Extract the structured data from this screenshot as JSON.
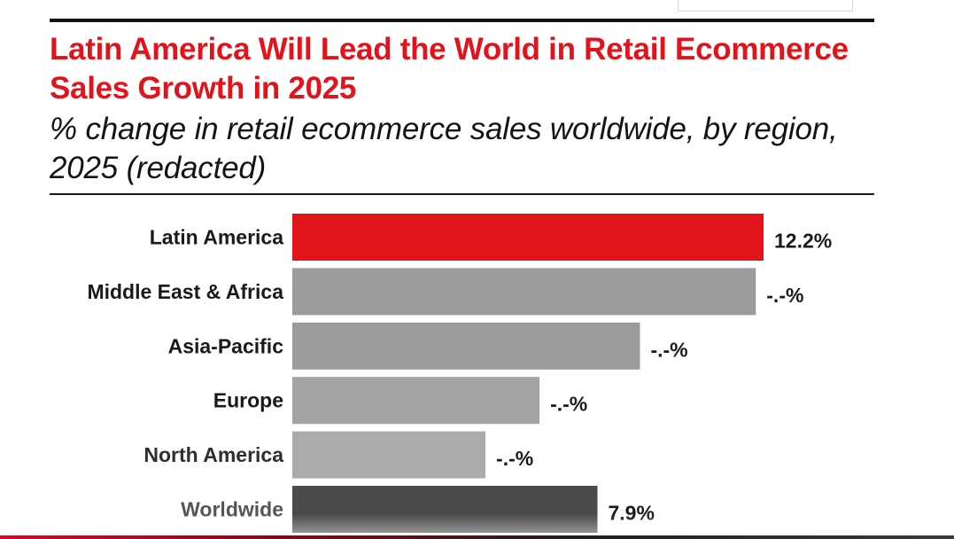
{
  "chart_data": {
    "type": "bar",
    "orientation": "horizontal",
    "title": "Latin America Will Lead the World in Retail Ecommerce Sales Growth in 2025",
    "subtitle": "% change in retail ecommerce sales worldwide, by region, 2025 (redacted)",
    "xlabel": "",
    "ylabel": "",
    "xlim": [
      0,
      12.2
    ],
    "grid": false,
    "legend": "none",
    "categories": [
      "Latin America",
      "Middle East & Africa",
      "Asia-Pacific",
      "Europe",
      "North America",
      "Worldwide"
    ],
    "values": [
      12.2,
      12.0,
      9.0,
      6.4,
      5.0,
      7.9
    ],
    "value_labels": [
      "12.2%",
      "-.-%",
      "-.-%",
      "-.-%",
      "-.-%",
      "7.9%"
    ],
    "bar_colors": [
      "#e3131b",
      "#9b9b9b",
      "#9b9b9b",
      "#a3a3a3",
      "#ababab",
      "#4a4a4a"
    ],
    "label_colors": [
      "#1a1a1a",
      "#1a1a1a",
      "#1a1a1a",
      "#1a1a1a",
      "#2e2e2e",
      "#555555"
    ]
  }
}
